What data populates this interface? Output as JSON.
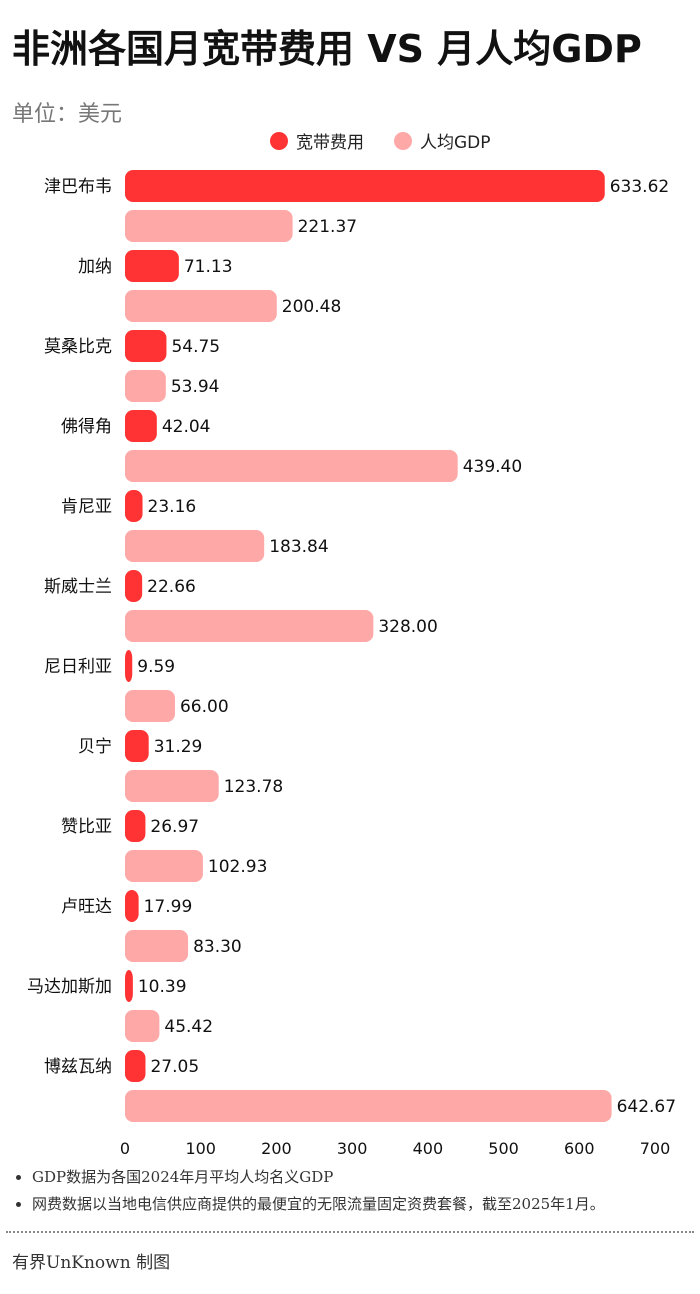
{
  "title": "非洲各国月宽带费用 VS 月人均GDP",
  "unit": "单位：美元",
  "legend": {
    "broadband_label": "宽带费用",
    "gdp_label": "人均GDP"
  },
  "colors": {
    "broadband": "#ff3333",
    "gdp": "#ffa8a8"
  },
  "chart_data": {
    "type": "bar",
    "orientation": "horizontal",
    "categories": [
      "津巴布韦",
      "加纳",
      "莫桑比克",
      "佛得角",
      "肯尼亚",
      "斯威士兰",
      "尼日利亚",
      "贝宁",
      "赞比亚",
      "卢旺达",
      "马达加斯加",
      "博兹瓦纳"
    ],
    "series": [
      {
        "name": "宽带费用",
        "values": [
          633.62,
          71.13,
          54.75,
          42.04,
          23.16,
          22.66,
          9.59,
          31.29,
          26.97,
          17.99,
          10.39,
          27.05
        ]
      },
      {
        "name": "人均GDP",
        "values": [
          221.37,
          200.48,
          53.94,
          439.4,
          183.84,
          328.0,
          66.0,
          123.78,
          102.93,
          83.3,
          45.42,
          642.67
        ]
      }
    ],
    "value_labels": [
      [
        "633.62",
        "71.13",
        "54.75",
        "42.04",
        "23.16",
        "22.66",
        "9.59",
        "31.29",
        "26.97",
        "17.99",
        "10.39",
        "27.05"
      ],
      [
        "221.37",
        "200.48",
        "53.94",
        "439.40",
        "183.84",
        "328.00",
        "66.00",
        "123.78",
        "102.93",
        "83.30",
        "45.42",
        "642.67"
      ]
    ],
    "xlim": [
      0,
      700
    ],
    "xticks": [
      "0",
      "100",
      "200",
      "300",
      "400",
      "500",
      "600",
      "700"
    ],
    "grid": false,
    "legend_position": "top"
  },
  "notes": [
    "GDP数据为各国2024年月平均人均名义GDP",
    "网费数据以当地电信供应商提供的最便宜的无限流量固定资费套餐，截至2025年1月。"
  ],
  "credit": "有界UnKnown 制图"
}
